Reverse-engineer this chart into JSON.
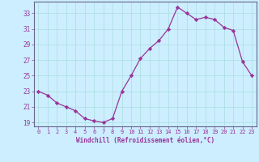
{
  "x": [
    0,
    1,
    2,
    3,
    4,
    5,
    6,
    7,
    8,
    9,
    10,
    11,
    12,
    13,
    14,
    15,
    16,
    17,
    18,
    19,
    20,
    21,
    22,
    23
  ],
  "y": [
    23.0,
    22.5,
    21.5,
    21.0,
    20.5,
    19.5,
    19.2,
    19.0,
    19.5,
    23.0,
    25.0,
    27.2,
    28.5,
    29.5,
    31.0,
    33.8,
    33.0,
    32.2,
    32.5,
    32.2,
    31.2,
    30.8,
    26.8,
    25.0
  ],
  "line_color": "#993399",
  "marker": "D",
  "marker_size": 2.2,
  "bg_color": "#cceeff",
  "grid_color": "#aadddd",
  "xlabel": "Windchill (Refroidissement éolien,°C)",
  "ylabel_ticks": [
    19,
    21,
    23,
    25,
    27,
    29,
    31,
    33
  ],
  "xlim": [
    -0.5,
    23.5
  ],
  "ylim": [
    18.5,
    34.5
  ],
  "xtick_labels": [
    "0",
    "1",
    "2",
    "3",
    "4",
    "5",
    "6",
    "7",
    "8",
    "9",
    "10",
    "11",
    "12",
    "13",
    "14",
    "15",
    "16",
    "17",
    "18",
    "19",
    "20",
    "21",
    "22",
    "23"
  ],
  "font_color": "#993399",
  "spine_color": "#666688"
}
